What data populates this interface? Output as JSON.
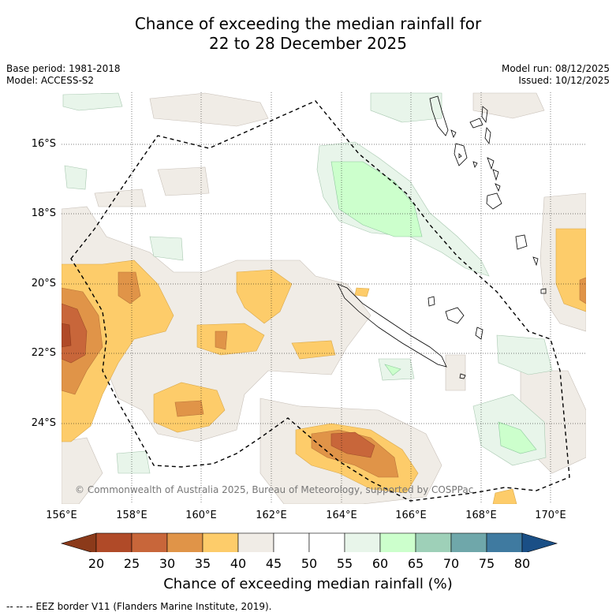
{
  "title_line1": "Chance of exceeding the median rainfall for",
  "title_line2": "22 to 28 December 2025",
  "left_meta": {
    "base_period": "Base period: 1981-2018",
    "model": "Model: ACCESS-S2"
  },
  "right_meta": {
    "model_run": "Model run: 08/12/2025",
    "issued": "Issued: 10/12/2025"
  },
  "lat_labels": [
    "16°S",
    "18°S",
    "20°S",
    "22°S",
    "24°S"
  ],
  "lon_labels": [
    "156°E",
    "158°E",
    "160°E",
    "162°E",
    "164°E",
    "166°E",
    "168°E",
    "170°E"
  ],
  "copyright": "© Commonwealth of Australia 2025, Bureau of Meteorology, supported by COSPPac",
  "colorbar": {
    "ticks": [
      "20",
      "25",
      "30",
      "35",
      "40",
      "45",
      "50",
      "55",
      "60",
      "65",
      "70",
      "75",
      "80"
    ],
    "colors": [
      "#8b3a1a",
      "#b04a28",
      "#c8663a",
      "#e09448",
      "#fdcc6a",
      "#f0ece6",
      "#ffffff",
      "#ffffff",
      "#e8f5ea",
      "#ccffcc",
      "#9ed0b8",
      "#6fa7aa",
      "#3f7aa0",
      "#1a4f86"
    ],
    "label": "Chance of exceeding median rainfall (%)"
  },
  "eez_note": "--  --  -- EEZ border V11 (Flanders Marine Institute, 2019)."
}
